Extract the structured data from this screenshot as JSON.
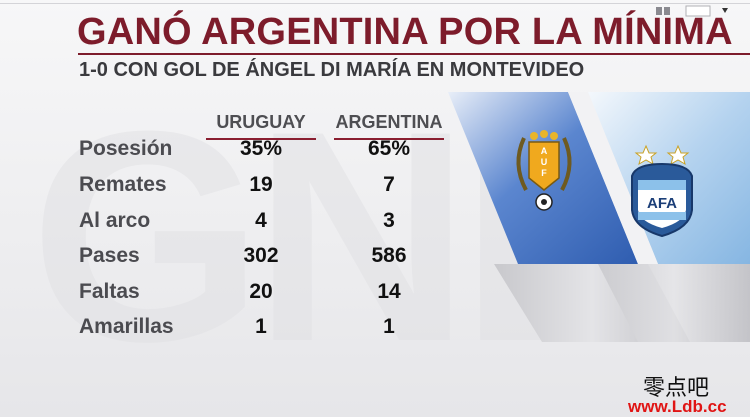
{
  "title": "GANÓ ARGENTINA POR LA MÍNIMA",
  "subtitle": "1-0 CON GOL DE ÁNGEL DI MARÍA EN MONTEVIDEO",
  "teams": {
    "home": "URUGUAY",
    "away": "ARGENTINA"
  },
  "stats": [
    {
      "label": "Posesión",
      "home": "35%",
      "away": "65%"
    },
    {
      "label": "Remates",
      "home": "19",
      "away": "7"
    },
    {
      "label": "Al arco",
      "home": "4",
      "away": "3"
    },
    {
      "label": "Pases",
      "home": "302",
      "away": "586"
    },
    {
      "label": "Faltas",
      "home": "20",
      "away": "14"
    },
    {
      "label": "Amarillas",
      "home": "1",
      "away": "1"
    }
  ],
  "crests": {
    "home": "AUF",
    "away": "AFA"
  },
  "watermark": {
    "text": "零点吧",
    "url": "www.Ldb.cc"
  },
  "colors": {
    "title": "#7d1c2b",
    "uruguay_panel": "#3e6fc0",
    "argentina_panel": "#9fc6ea",
    "url": "#e01414"
  }
}
